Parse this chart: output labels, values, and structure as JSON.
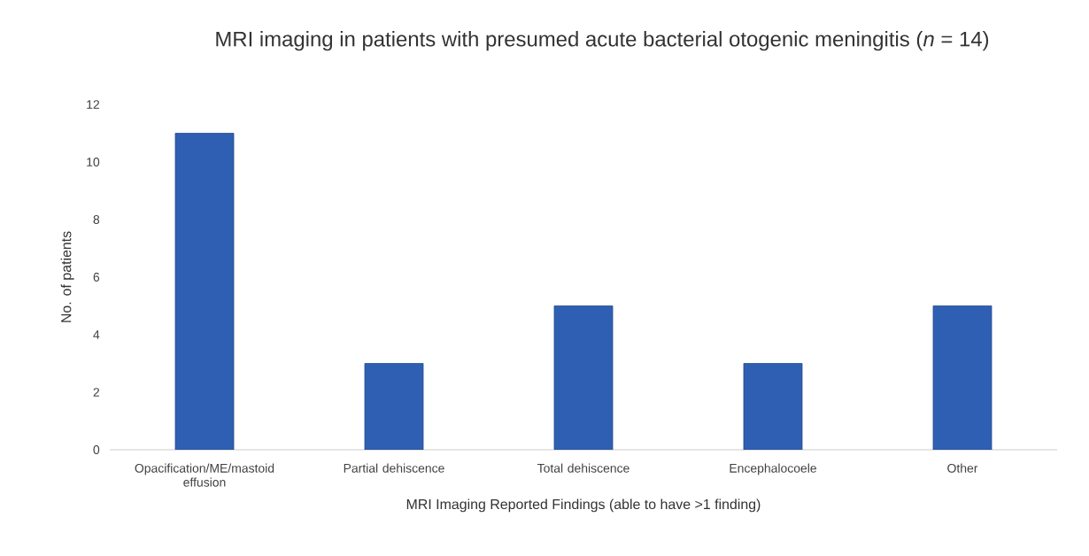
{
  "chart_data": {
    "type": "bar",
    "title": "MRI imaging in patients with presumed acute bacterial otogenic meningitis (*n* = 14)",
    "xlabel": "MRI Imaging Reported Findings (able to have >1 finding)",
    "ylabel": "No. of patients",
    "categories": [
      "Opacification/ME/mastoid effusion",
      "Partial dehiscence",
      "Total dehiscence",
      "Encephalocoele",
      "Other"
    ],
    "values": [
      11,
      3,
      5,
      3,
      5
    ],
    "color": "#2f5fb2",
    "ylim": [
      0,
      12
    ],
    "yticks": [
      0,
      2,
      4,
      6,
      8,
      10,
      12
    ],
    "grid": false
  }
}
